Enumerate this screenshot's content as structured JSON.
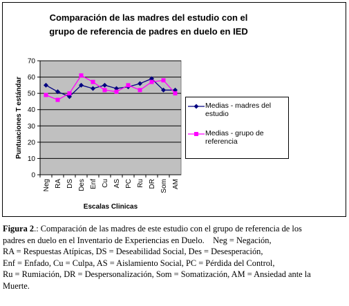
{
  "chart_data": {
    "type": "line",
    "title": [
      "Comparación de las madres del estudio con el",
      "grupo de referencia de padres en duelo en IED"
    ],
    "x_label": "Escalas Clinicas",
    "y_label": "Puntuaciones T estándar",
    "categories": [
      "Neg",
      "RA",
      "DS",
      "Des",
      "Enf",
      "Cu",
      "AS",
      "PC",
      "Ru",
      "DR",
      "Som",
      "AM"
    ],
    "series": [
      {
        "name": "Medias - madres del estudio",
        "color": "#000080",
        "marker": "diamond",
        "values": [
          55,
          51,
          48,
          55,
          53,
          55,
          53,
          54,
          56,
          59,
          52,
          52
        ]
      },
      {
        "name": "Medias - grupo de referencia",
        "color": "#ff00ff",
        "marker": "square",
        "values": [
          49,
          46,
          50,
          61,
          57,
          52,
          51,
          55,
          52,
          57,
          58,
          50
        ]
      }
    ],
    "ylim": [
      0,
      70
    ],
    "yticks": [
      0,
      10,
      20,
      30,
      40,
      50,
      60,
      70
    ],
    "grid": true,
    "legend": "right",
    "plot_background": "#c0c0c0"
  },
  "caption": {
    "label": "Figura 2",
    "lines": [
      ".: Comparación de las madres de este estudio con el grupo de referencia de los",
      "padres en duelo en el Inventario de Experiencias en Duelo.    Neg = Negación,",
      "RA = Respuestas Atípicas, DS = Deseabilidad Social, Des = Desesperación,",
      "Enf = Enfado, Cu = Culpa, AS = Aislamiento Social, PC = Pérdida del Control,",
      "Ru = Rumiación, DR = Despersonalización, Som = Somatización, AM = Ansiedad ante la",
      "Muerte."
    ]
  }
}
